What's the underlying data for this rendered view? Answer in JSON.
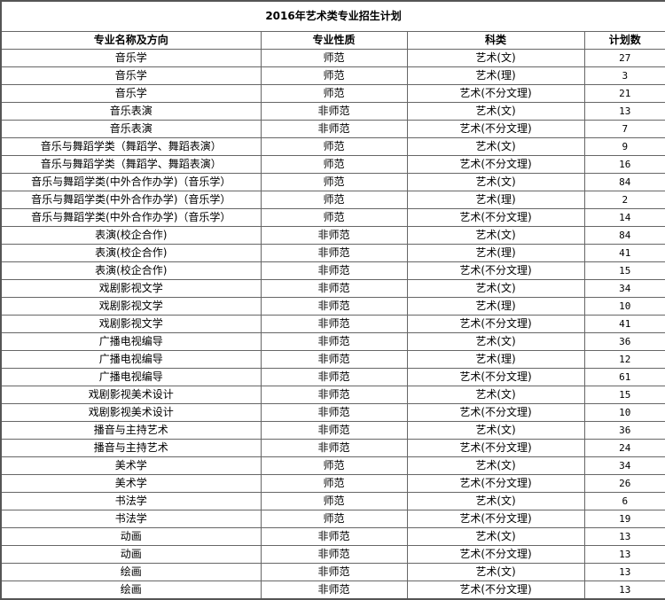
{
  "title": "2016年艺术类专业招生计划",
  "columns": [
    "专业名称及方向",
    "专业性质",
    "科类",
    "计划数"
  ],
  "rows": [
    [
      "音乐学",
      "师范",
      "艺术(文)",
      "27"
    ],
    [
      "音乐学",
      "师范",
      "艺术(理)",
      "3"
    ],
    [
      "音乐学",
      "师范",
      "艺术(不分文理)",
      "21"
    ],
    [
      "音乐表演",
      "非师范",
      "艺术(文)",
      "13"
    ],
    [
      "音乐表演",
      "非师范",
      "艺术(不分文理)",
      "7"
    ],
    [
      "音乐与舞蹈学类（舞蹈学、舞蹈表演）",
      "师范",
      "艺术(文)",
      "9"
    ],
    [
      "音乐与舞蹈学类（舞蹈学、舞蹈表演）",
      "师范",
      "艺术(不分文理)",
      "16"
    ],
    [
      "音乐与舞蹈学类(中外合作办学)（音乐学）",
      "师范",
      "艺术(文)",
      "84"
    ],
    [
      "音乐与舞蹈学类(中外合作办学)（音乐学）",
      "师范",
      "艺术(理)",
      "2"
    ],
    [
      "音乐与舞蹈学类(中外合作办学)（音乐学）",
      "师范",
      "艺术(不分文理)",
      "14"
    ],
    [
      "表演(校企合作)",
      "非师范",
      "艺术(文)",
      "84"
    ],
    [
      "表演(校企合作)",
      "非师范",
      "艺术(理)",
      "41"
    ],
    [
      "表演(校企合作)",
      "非师范",
      "艺术(不分文理)",
      "15"
    ],
    [
      "戏剧影视文学",
      "非师范",
      "艺术(文)",
      "34"
    ],
    [
      "戏剧影视文学",
      "非师范",
      "艺术(理)",
      "10"
    ],
    [
      "戏剧影视文学",
      "非师范",
      "艺术(不分文理)",
      "41"
    ],
    [
      "广播电视编导",
      "非师范",
      "艺术(文)",
      "36"
    ],
    [
      "广播电视编导",
      "非师范",
      "艺术(理)",
      "12"
    ],
    [
      "广播电视编导",
      "非师范",
      "艺术(不分文理)",
      "61"
    ],
    [
      "戏剧影视美术设计",
      "非师范",
      "艺术(文)",
      "15"
    ],
    [
      "戏剧影视美术设计",
      "非师范",
      "艺术(不分文理)",
      "10"
    ],
    [
      "播音与主持艺术",
      "非师范",
      "艺术(文)",
      "36"
    ],
    [
      "播音与主持艺术",
      "非师范",
      "艺术(不分文理)",
      "24"
    ],
    [
      "美术学",
      "师范",
      "艺术(文)",
      "34"
    ],
    [
      "美术学",
      "师范",
      "艺术(不分文理)",
      "26"
    ],
    [
      "书法学",
      "师范",
      "艺术(文)",
      "6"
    ],
    [
      "书法学",
      "师范",
      "艺术(不分文理)",
      "19"
    ],
    [
      "动画",
      "非师范",
      "艺术(文)",
      "13"
    ],
    [
      "动画",
      "非师范",
      "艺术(不分文理)",
      "13"
    ],
    [
      "绘画",
      "非师范",
      "艺术(文)",
      "13"
    ],
    [
      "绘画",
      "非师范",
      "艺术(不分文理)",
      "13"
    ]
  ]
}
